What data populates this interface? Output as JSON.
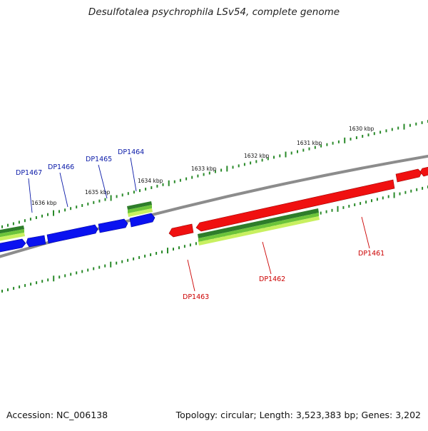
{
  "title": "Desulfotalea psychrophila LSv54, complete genome",
  "footer": {
    "accession": "Accession: NC_006138",
    "info": "Topology: circular; Length: 3,523,383 bp; Genes: 3,202"
  },
  "colors": {
    "background": "#ffffff",
    "backbone": "#8c8c8c",
    "reverse_strand_gene": "#0a12f0",
    "forward_strand_gene": "#f01010",
    "cds_dark_green": "#2e7d2a",
    "cds_mid_green": "#6cc43a",
    "cds_light_green": "#c8f060",
    "tick": "#2a8a2a",
    "reverse_label": "#0a1aa8",
    "forward_label": "#cc0000"
  },
  "scale_labels": [
    "1630 kbp",
    "1631 kbp",
    "1632 kbp",
    "1633 kbp",
    "1634 kbp",
    "1635 kbp",
    "1636 kbp"
  ],
  "reverse_genes": [
    "DP1467",
    "DP1466",
    "DP1465",
    "DP1464"
  ],
  "forward_genes": [
    "DP1461",
    "DP1462",
    "DP1463"
  ]
}
